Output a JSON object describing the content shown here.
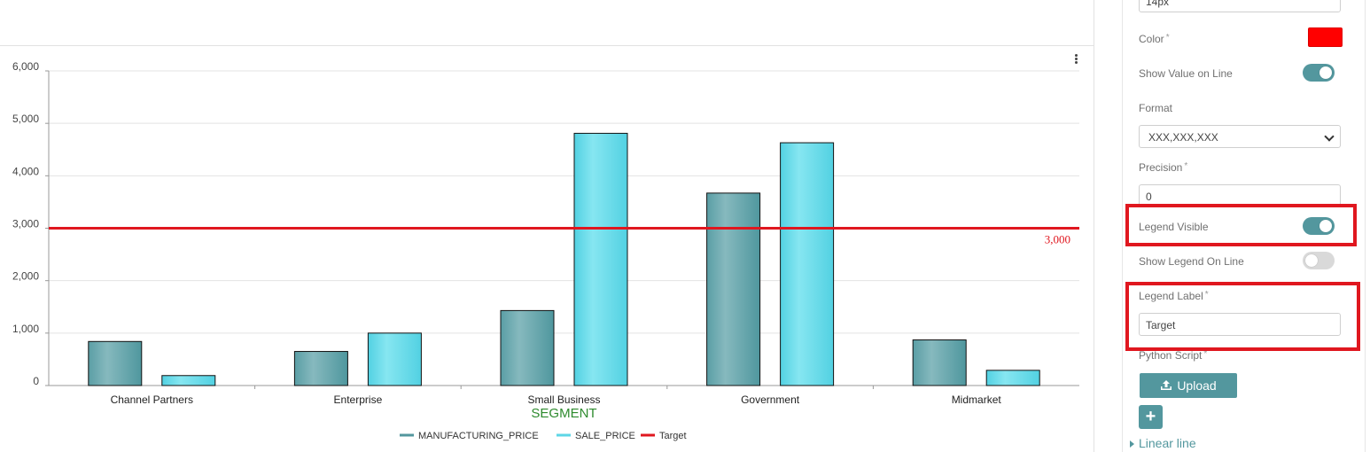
{
  "chart": {
    "xlabel": "SEGMENT",
    "target_label": "3,000",
    "legend": [
      "MANUFACTURING_PRICE",
      "SALE_PRICE",
      "Target"
    ]
  },
  "chart_data": {
    "type": "bar",
    "categories": [
      "Channel Partners",
      "Enterprise",
      "Small Business",
      "Government",
      "Midmarket"
    ],
    "series": [
      {
        "name": "MANUFACTURING_PRICE",
        "values": [
          840,
          650,
          1430,
          3670,
          870
        ],
        "color": "#5fa3aa"
      },
      {
        "name": "SALE_PRICE",
        "values": [
          190,
          1000,
          4810,
          4630,
          290
        ],
        "color": "#5dd6e6"
      }
    ],
    "target": {
      "name": "Target",
      "value": 3000,
      "color": "#e0171f"
    },
    "xlabel": "SEGMENT",
    "ylabel": "",
    "ylim": [
      0,
      6000
    ],
    "yticks": [
      "0",
      "1,000",
      "2,000",
      "3,000",
      "4,000",
      "5,000",
      "6,000"
    ],
    "grid": true,
    "legend_position": "bottom"
  },
  "panel": {
    "font_size_value": "14px",
    "color_label": "Color",
    "color_value": "#ff0000",
    "show_value_on_line_label": "Show Value on Line",
    "show_value_on_line": true,
    "format_label": "Format",
    "format_value": "XXX,XXX,XXX",
    "precision_label": "Precision",
    "precision_value": "0",
    "legend_visible_label": "Legend Visible",
    "legend_visible": true,
    "show_legend_on_line_label": "Show Legend On Line",
    "show_legend_on_line": false,
    "legend_label_label": "Legend Label",
    "legend_label_value": "Target",
    "python_script_label": "Python Script",
    "upload_label": "Upload",
    "add_label": "+",
    "linear_line_label": "Linear line"
  },
  "colors": {
    "accent": "#53979e",
    "highlight": "#e0171f",
    "target": "#e0171f"
  }
}
